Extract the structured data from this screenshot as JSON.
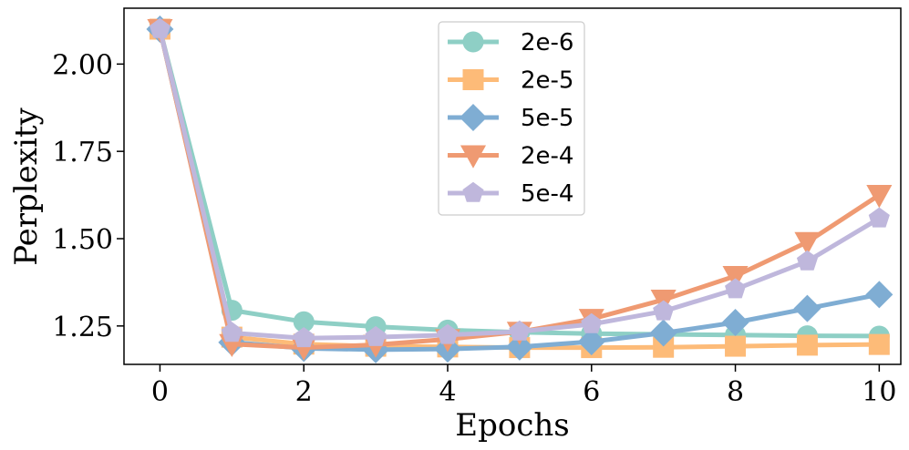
{
  "chart_data": {
    "type": "line",
    "title": "",
    "xlabel": "Epochs",
    "ylabel": "Perplexity",
    "xlim": [
      -0.5,
      10.3
    ],
    "ylim": [
      1.14,
      2.16
    ],
    "xticks": [
      0,
      2,
      4,
      6,
      8,
      10
    ],
    "xtick_labels": [
      "0",
      "2",
      "4",
      "6",
      "8",
      "10"
    ],
    "yticks": [
      1.25,
      1.5,
      1.75,
      2.0
    ],
    "ytick_labels": [
      "1.25",
      "1.50",
      "1.75",
      "2.00"
    ],
    "grid": false,
    "legend_position": "top-center",
    "x": [
      0,
      1,
      2,
      3,
      4,
      5,
      6,
      7,
      8,
      9,
      10
    ],
    "series": [
      {
        "name": "2e-6",
        "color": "#8ecfc5",
        "marker": "circle",
        "values": [
          2.1,
          1.295,
          1.262,
          1.248,
          1.238,
          1.232,
          1.228,
          1.226,
          1.224,
          1.222,
          1.221
        ]
      },
      {
        "name": "2e-5",
        "color": "#fdbb78",
        "marker": "square",
        "values": [
          2.1,
          1.218,
          1.198,
          1.192,
          1.19,
          1.188,
          1.188,
          1.189,
          1.192,
          1.195,
          1.197
        ]
      },
      {
        "name": "5e-5",
        "color": "#7fadd3",
        "marker": "diamond",
        "values": [
          2.1,
          1.203,
          1.186,
          1.182,
          1.184,
          1.19,
          1.205,
          1.23,
          1.26,
          1.3,
          1.34
        ]
      },
      {
        "name": "2e-4",
        "color": "#ef9a72",
        "marker": "triangle-down",
        "values": [
          2.1,
          1.198,
          1.188,
          1.196,
          1.212,
          1.233,
          1.27,
          1.325,
          1.393,
          1.49,
          1.625
        ]
      },
      {
        "name": "5e-4",
        "color": "#bfb7dc",
        "marker": "pentagon",
        "values": [
          2.1,
          1.23,
          1.215,
          1.218,
          1.224,
          1.234,
          1.255,
          1.292,
          1.355,
          1.435,
          1.558
        ]
      }
    ]
  }
}
